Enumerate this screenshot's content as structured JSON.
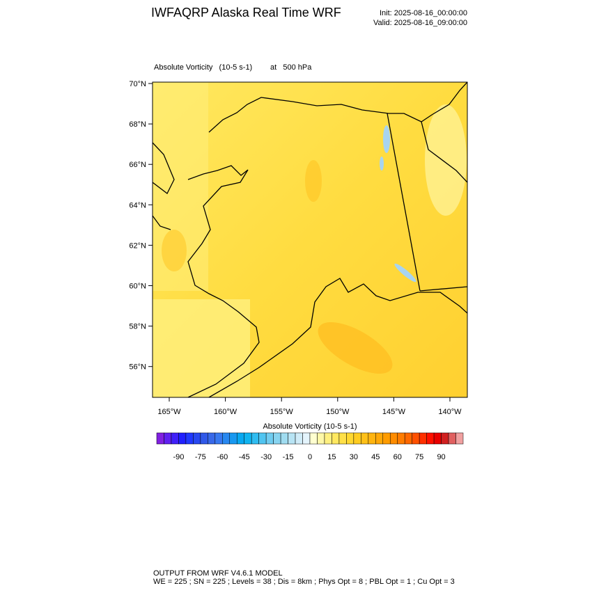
{
  "header": {
    "title": "IWFAQRP Alaska Real Time WRF",
    "init": "Init: 2025-08-16_00:00:00",
    "valid": "Valid: 2025-08-16_09:00:00"
  },
  "map": {
    "field": "Absolute Vorticity   (10-5 s-1)",
    "level": "at   500 hPa",
    "lat_labels": [
      "70°N",
      "68°N",
      "66°N",
      "64°N",
      "62°N",
      "60°N",
      "58°N",
      "56°N"
    ],
    "lon_labels": [
      "165°W",
      "160°W",
      "155°W",
      "150°W",
      "145°W",
      "140°W"
    ]
  },
  "colorbar": {
    "title": "Absolute Vorticity  (10-5 s-1)",
    "colors": [
      "#8020e0",
      "#6020f0",
      "#4020f8",
      "#2020ff",
      "#2038ff",
      "#2848f0",
      "#3058e8",
      "#3868e8",
      "#3878f0",
      "#2888f0",
      "#1898f0",
      "#08a8f0",
      "#10b4f0",
      "#30bcf0",
      "#50c4f0",
      "#70ccf0",
      "#88d4f0",
      "#a0dcf0",
      "#b8e4f4",
      "#d0ecf8",
      "#e4f4fc",
      "#ffffd0",
      "#fff8a8",
      "#fff080",
      "#ffe860",
      "#ffe048",
      "#ffd830",
      "#ffcc20",
      "#ffc018",
      "#ffb410",
      "#ffa808",
      "#ff9c00",
      "#ff8c00",
      "#ff7c00",
      "#ff6800",
      "#ff5000",
      "#ff3000",
      "#ff1000",
      "#e80000",
      "#d02020",
      "#e06060",
      "#f0a0a0"
    ],
    "ticks": [
      -90,
      -75,
      -60,
      -45,
      -30,
      -15,
      0,
      15,
      30,
      45,
      60,
      75,
      90
    ]
  },
  "footer": {
    "line1": "OUTPUT FROM WRF V4.6.1 MODEL",
    "line2": "WE = 225 ; SN = 225 ; Levels = 38 ; Dis = 8km ; Phys Opt = 8 ; PBL Opt = 1 ; Cu Opt = 3"
  }
}
